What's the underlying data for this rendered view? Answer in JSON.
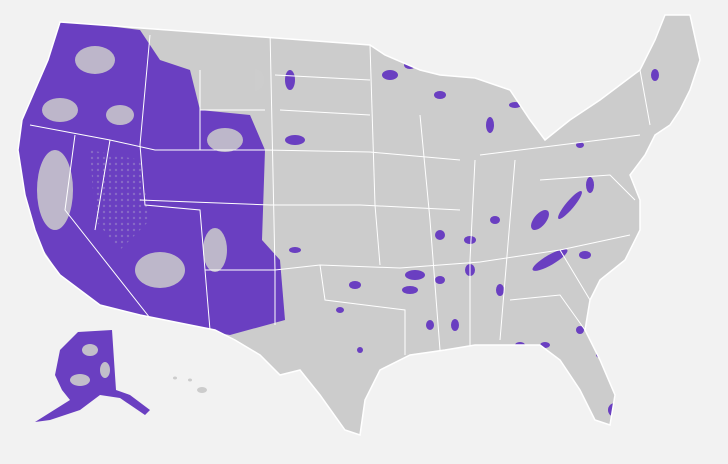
{
  "map": {
    "colors": {
      "background": "#f2f2f2",
      "land": "#cccccc",
      "highlight": "#6a3fc1",
      "borders": "#ffffff"
    }
  }
}
